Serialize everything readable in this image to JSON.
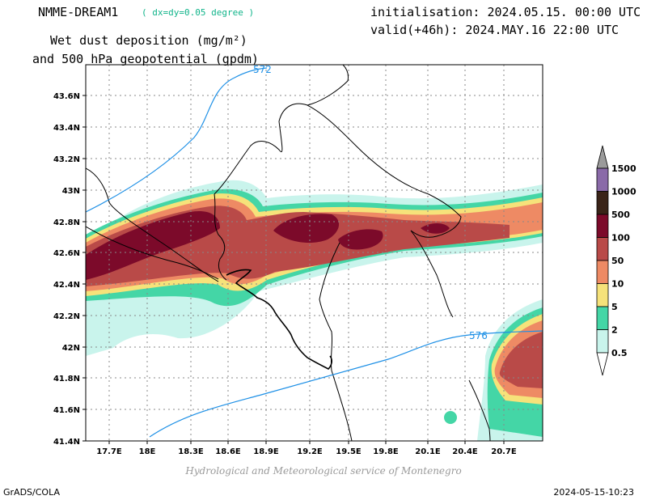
{
  "header": {
    "model": "NMME-DREAM1",
    "resolution": "( dx=dy=0.05 degree )",
    "field_line1": "Wet dust deposition (mg/m²)",
    "field_line2": "and 500 hPa geopotential (gpdm)",
    "initialisation": "initialisation: 2024.05.15. 00:00 UTC",
    "valid": "valid(+46h): 2024.MAY.16 22:00 UTC"
  },
  "axes": {
    "lat_ticks": [
      "43.6N",
      "43.4N",
      "43.2N",
      "43N",
      "42.8N",
      "42.6N",
      "42.4N",
      "42.2N",
      "42N",
      "41.8N",
      "41.6N",
      "41.4N"
    ],
    "lon_ticks": [
      "17.7E",
      "18E",
      "18.3E",
      "18.6E",
      "18.9E",
      "19.2E",
      "19.5E",
      "19.8E",
      "20.1E",
      "20.4E",
      "20.7E"
    ]
  },
  "contours": {
    "labels": [
      "572",
      "576"
    ],
    "color": "#1e90e6"
  },
  "legend": {
    "levels": [
      {
        "label": "1500",
        "color": "#9b9b9b"
      },
      {
        "label": "1000",
        "color": "#8a6aa8"
      },
      {
        "label": "500",
        "color": "#3a2418"
      },
      {
        "label": "100",
        "color": "#7c0a2a"
      },
      {
        "label": "50",
        "color": "#b94a48"
      },
      {
        "label": "10",
        "color": "#ee8a64"
      },
      {
        "label": "5",
        "color": "#f6e27a"
      },
      {
        "label": "2",
        "color": "#44d6a6"
      },
      {
        "label": "0.5",
        "color": "#c9f4ec"
      }
    ]
  },
  "footer": {
    "credit": "Hydrological and Meteorological service of Montenegro",
    "left": "GrADS/COLA",
    "right": "2024-05-15-10:23"
  }
}
